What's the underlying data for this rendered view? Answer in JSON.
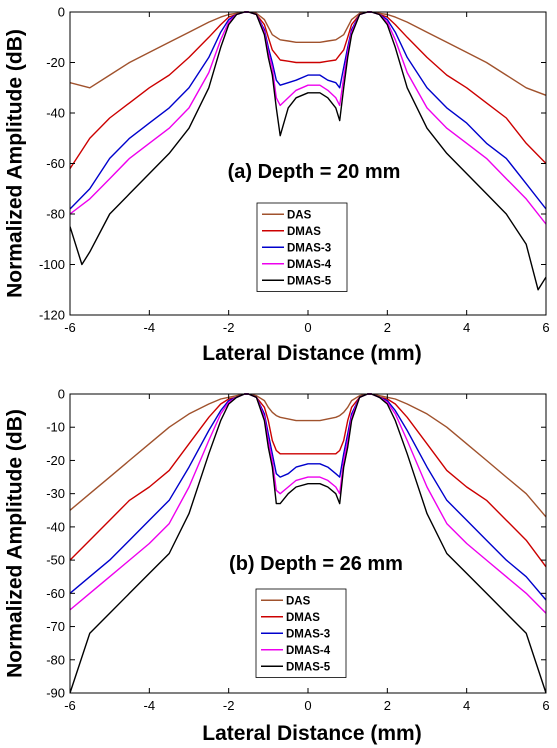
{
  "chart_data": [
    {
      "type": "line",
      "annotation": "(a) Depth = 20 mm",
      "xlabel": "Lateral Distance (mm)",
      "ylabel": "Normalized Amplitude (dB)",
      "xlim": [
        -6,
        6
      ],
      "ylim": [
        -120,
        0
      ],
      "xticks": [
        -6,
        -4,
        -2,
        0,
        2,
        4,
        6
      ],
      "yticks": [
        0,
        -20,
        -40,
        -60,
        -80,
        -100,
        -120
      ],
      "grid": false,
      "legend_position": "center",
      "series": [
        {
          "name": "DAS",
          "color": "#a0522d",
          "x": [
            -6,
            -5.5,
            -5,
            -4.5,
            -4,
            -3.5,
            -3,
            -2.5,
            -2.2,
            -2,
            -1.8,
            -1.6,
            -1.5,
            -1.3,
            -1.1,
            -1,
            -0.9,
            -0.8,
            -0.7,
            -0.5,
            -0.3,
            0,
            0.3,
            0.5,
            0.7,
            0.8,
            0.9,
            1,
            1.1,
            1.3,
            1.5,
            1.6,
            1.8,
            2,
            2.2,
            2.5,
            3,
            3.5,
            4,
            4.5,
            5,
            5.5,
            6
          ],
          "y": [
            -28,
            -30,
            -25,
            -20,
            -16,
            -12,
            -8,
            -4,
            -2,
            -1,
            -0.5,
            0,
            0,
            -0.5,
            -3,
            -6,
            -9,
            -10,
            -11,
            -11.5,
            -12,
            -12,
            -12,
            -11.5,
            -11,
            -10,
            -9,
            -6,
            -3,
            -0.5,
            0,
            0,
            -0.5,
            -1,
            -2,
            -4,
            -8,
            -12,
            -16,
            -20,
            -25,
            -30,
            -33
          ]
        },
        {
          "name": "DMAS",
          "color": "#cc0000",
          "x": [
            -6,
            -5.5,
            -5,
            -4.5,
            -4,
            -3.5,
            -3,
            -2.5,
            -2.2,
            -2,
            -1.8,
            -1.6,
            -1.5,
            -1.3,
            -1.1,
            -1,
            -0.9,
            -0.8,
            -0.7,
            -0.5,
            -0.3,
            0,
            0.3,
            0.5,
            0.7,
            0.8,
            0.9,
            1,
            1.1,
            1.3,
            1.5,
            1.6,
            1.8,
            2,
            2.2,
            2.5,
            3,
            3.5,
            4,
            4.5,
            5,
            5.5,
            6
          ],
          "y": [
            -62,
            -50,
            -42,
            -36,
            -30,
            -25,
            -18,
            -10,
            -5,
            -2,
            -1,
            0,
            0,
            -1,
            -5,
            -10,
            -15,
            -17,
            -19,
            -19.5,
            -20,
            -20,
            -20,
            -19.5,
            -19,
            -17,
            -15,
            -10,
            -5,
            -1,
            0,
            0,
            -1,
            -2,
            -5,
            -10,
            -18,
            -25,
            -30,
            -36,
            -42,
            -52,
            -60
          ]
        },
        {
          "name": "DMAS-3",
          "color": "#0000cc",
          "x": [
            -6,
            -5.5,
            -5,
            -4.5,
            -4,
            -3.5,
            -3,
            -2.5,
            -2.2,
            -2,
            -1.8,
            -1.6,
            -1.5,
            -1.3,
            -1.1,
            -1,
            -0.9,
            -0.8,
            -0.7,
            -0.5,
            -0.3,
            0,
            0.3,
            0.5,
            0.7,
            0.8,
            0.9,
            1,
            1.1,
            1.3,
            1.5,
            1.6,
            1.8,
            2,
            2.2,
            2.5,
            3,
            3.5,
            4,
            4.5,
            5,
            5.5,
            6
          ],
          "y": [
            -78,
            -70,
            -58,
            -50,
            -44,
            -38,
            -30,
            -18,
            -8,
            -3,
            -1,
            0,
            0,
            -1,
            -7,
            -14,
            -20,
            -27,
            -29,
            -28,
            -27,
            -25,
            -25,
            -27,
            -28,
            -30,
            -22,
            -14,
            -7,
            -1,
            0,
            0,
            -1,
            -3,
            -8,
            -18,
            -30,
            -38,
            -44,
            -52,
            -58,
            -68,
            -78
          ]
        },
        {
          "name": "DMAS-4",
          "color": "#ee00ee",
          "x": [
            -6,
            -5.5,
            -5,
            -4.5,
            -4,
            -3.5,
            -3,
            -2.5,
            -2.2,
            -2,
            -1.8,
            -1.6,
            -1.5,
            -1.3,
            -1.1,
            -1,
            -0.9,
            -0.8,
            -0.7,
            -0.5,
            -0.3,
            0,
            0.3,
            0.5,
            0.7,
            0.8,
            0.9,
            1,
            1.1,
            1.3,
            1.5,
            1.6,
            1.8,
            2,
            2.2,
            2.5,
            3,
            3.5,
            4,
            4.5,
            5,
            5.5,
            6
          ],
          "y": [
            -80,
            -74,
            -66,
            -58,
            -52,
            -46,
            -38,
            -24,
            -11,
            -4,
            -1,
            0,
            0,
            -1,
            -8,
            -16,
            -22,
            -34,
            -37,
            -34,
            -31,
            -29,
            -29,
            -31,
            -34,
            -37,
            -26,
            -16,
            -8,
            -1,
            0,
            0,
            -1,
            -4,
            -11,
            -24,
            -38,
            -46,
            -52,
            -58,
            -66,
            -74,
            -84
          ]
        },
        {
          "name": "DMAS-5",
          "color": "#000000",
          "x": [
            -6,
            -5.7,
            -5.5,
            -5,
            -4.5,
            -4,
            -3.5,
            -3,
            -2.5,
            -2.2,
            -2,
            -1.8,
            -1.6,
            -1.5,
            -1.3,
            -1.1,
            -1,
            -0.9,
            -0.8,
            -0.7,
            -0.5,
            -0.3,
            0,
            0.3,
            0.5,
            0.7,
            0.8,
            0.9,
            1,
            1.1,
            1.3,
            1.5,
            1.6,
            1.8,
            2,
            2.2,
            2.5,
            3,
            3.5,
            4,
            4.5,
            5,
            5.5,
            5.8,
            6
          ],
          "y": [
            -85,
            -100,
            -95,
            -80,
            -72,
            -64,
            -56,
            -46,
            -30,
            -14,
            -5,
            -1,
            0,
            0,
            -1,
            -9,
            -18,
            -25,
            -38,
            -49,
            -38,
            -34,
            -32,
            -32,
            -34,
            -38,
            -43,
            -30,
            -18,
            -9,
            -1,
            0,
            0,
            -1,
            -5,
            -14,
            -30,
            -46,
            -56,
            -64,
            -72,
            -80,
            -92,
            -110,
            -105
          ]
        }
      ]
    },
    {
      "type": "line",
      "annotation": "(b) Depth = 26 mm",
      "xlabel": "Lateral Distance (mm)",
      "ylabel": "Normalized Amplitude (dB)",
      "xlim": [
        -6,
        6
      ],
      "ylim": [
        -90,
        0
      ],
      "xticks": [
        -6,
        -4,
        -2,
        0,
        2,
        4,
        6
      ],
      "yticks": [
        0,
        -10,
        -20,
        -30,
        -40,
        -50,
        -60,
        -70,
        -80,
        -90
      ],
      "grid": false,
      "legend_position": "bottom-center",
      "series": [
        {
          "name": "DAS",
          "color": "#a0522d",
          "x": [
            -6,
            -5.5,
            -5,
            -4.5,
            -4,
            -3.5,
            -3,
            -2.5,
            -2.2,
            -2,
            -1.8,
            -1.6,
            -1.5,
            -1.3,
            -1.1,
            -1,
            -0.9,
            -0.8,
            -0.7,
            -0.5,
            -0.3,
            0,
            0.3,
            0.5,
            0.7,
            0.8,
            0.9,
            1,
            1.1,
            1.3,
            1.5,
            1.6,
            1.8,
            2,
            2.2,
            2.5,
            3,
            3.5,
            4,
            4.5,
            5,
            5.5,
            6
          ],
          "y": [
            -35,
            -30,
            -25,
            -20,
            -15,
            -10,
            -6,
            -3,
            -1.5,
            -1,
            -0.5,
            0,
            0,
            -0.5,
            -2,
            -4,
            -5.5,
            -6.5,
            -7,
            -7.5,
            -8,
            -8,
            -8,
            -7.5,
            -7,
            -6.5,
            -5.5,
            -4,
            -2,
            -0.5,
            0,
            0,
            -0.5,
            -1,
            -1.5,
            -3,
            -6,
            -10,
            -15,
            -20,
            -25,
            -30,
            -37
          ]
        },
        {
          "name": "DMAS",
          "color": "#cc0000",
          "x": [
            -6,
            -5.5,
            -5,
            -4.5,
            -4,
            -3.5,
            -3,
            -2.5,
            -2.2,
            -2,
            -1.8,
            -1.6,
            -1.5,
            -1.3,
            -1.1,
            -1,
            -0.9,
            -0.8,
            -0.7,
            -0.5,
            -0.3,
            0,
            0.3,
            0.5,
            0.7,
            0.8,
            0.9,
            1,
            1.1,
            1.3,
            1.5,
            1.6,
            1.8,
            2,
            2.2,
            2.5,
            3,
            3.5,
            4,
            4.5,
            5,
            5.5,
            6
          ],
          "y": [
            -50,
            -44,
            -38,
            -32,
            -28,
            -23,
            -15,
            -7,
            -3,
            -1.5,
            -1,
            0,
            0,
            -1,
            -4,
            -8,
            -14,
            -17,
            -18,
            -18,
            -18,
            -18,
            -18,
            -18,
            -18,
            -17,
            -14,
            -8,
            -4,
            -1,
            0,
            0,
            -1,
            -1.5,
            -3,
            -7,
            -15,
            -23,
            -28,
            -32,
            -38,
            -44,
            -52
          ]
        },
        {
          "name": "DMAS-3",
          "color": "#0000cc",
          "x": [
            -6,
            -5.5,
            -5,
            -4.5,
            -4,
            -3.5,
            -3,
            -2.5,
            -2.2,
            -2,
            -1.8,
            -1.6,
            -1.5,
            -1.3,
            -1.1,
            -1,
            -0.9,
            -0.8,
            -0.7,
            -0.5,
            -0.3,
            0,
            0.3,
            0.5,
            0.7,
            0.8,
            0.9,
            1,
            1.1,
            1.3,
            1.5,
            1.6,
            1.8,
            2,
            2.2,
            2.5,
            3,
            3.5,
            4,
            4.5,
            5,
            5.5,
            6
          ],
          "y": [
            -60,
            -55,
            -50,
            -44,
            -38,
            -32,
            -22,
            -11,
            -5,
            -2,
            -1,
            0,
            0,
            -1,
            -6,
            -12,
            -18,
            -24,
            -25,
            -24,
            -22,
            -21,
            -21,
            -22,
            -24,
            -25,
            -18,
            -12,
            -6,
            -1,
            0,
            0,
            -1,
            -2,
            -5,
            -11,
            -22,
            -32,
            -38,
            -44,
            -50,
            -55,
            -62
          ]
        },
        {
          "name": "DMAS-4",
          "color": "#ee00ee",
          "x": [
            -6,
            -5.5,
            -5,
            -4.5,
            -4,
            -3.5,
            -3,
            -2.5,
            -2.2,
            -2,
            -1.8,
            -1.6,
            -1.5,
            -1.3,
            -1.1,
            -1,
            -0.9,
            -0.8,
            -0.7,
            -0.5,
            -0.3,
            0,
            0.3,
            0.5,
            0.7,
            0.8,
            0.9,
            1,
            1.1,
            1.3,
            1.5,
            1.6,
            1.8,
            2,
            2.2,
            2.5,
            3,
            3.5,
            4,
            4.5,
            5,
            5.5,
            6
          ],
          "y": [
            -65,
            -60,
            -55,
            -50,
            -45,
            -39,
            -28,
            -14,
            -6,
            -2.5,
            -1,
            0,
            0,
            -1,
            -7,
            -14,
            -20,
            -29,
            -30,
            -28,
            -26,
            -25,
            -25,
            -26,
            -28,
            -30,
            -20,
            -14,
            -7,
            -1,
            0,
            0,
            -1,
            -2.5,
            -6,
            -14,
            -28,
            -39,
            -45,
            -50,
            -55,
            -60,
            -66
          ]
        },
        {
          "name": "DMAS-5",
          "color": "#000000",
          "x": [
            -6,
            -5.5,
            -5,
            -4.5,
            -4,
            -3.5,
            -3,
            -2.5,
            -2.2,
            -2,
            -1.8,
            -1.6,
            -1.5,
            -1.3,
            -1.1,
            -1,
            -0.9,
            -0.8,
            -0.7,
            -0.5,
            -0.3,
            0,
            0.3,
            0.5,
            0.7,
            0.8,
            0.9,
            1,
            1.1,
            1.3,
            1.5,
            1.6,
            1.8,
            2,
            2.2,
            2.5,
            3,
            3.5,
            4,
            4.5,
            5,
            5.5,
            6
          ],
          "y": [
            -90,
            -72,
            -66,
            -60,
            -54,
            -48,
            -36,
            -18,
            -8,
            -3,
            -1,
            0,
            0,
            -1,
            -8,
            -16,
            -22,
            -33,
            -33,
            -30,
            -28,
            -27,
            -27,
            -28,
            -30,
            -33,
            -22,
            -16,
            -8,
            -1,
            0,
            0,
            -1,
            -3,
            -8,
            -18,
            -36,
            -48,
            -54,
            -60,
            -66,
            -72,
            -90
          ]
        }
      ]
    }
  ]
}
